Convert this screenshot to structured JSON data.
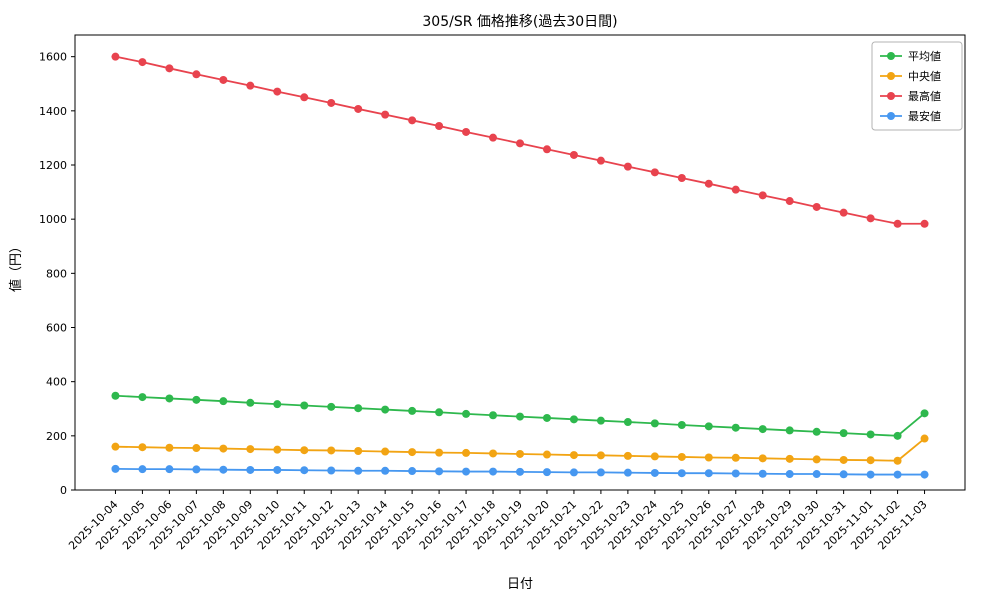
{
  "chart_data": {
    "type": "line",
    "title": "305/SR 価格推移(過去30日間)",
    "xlabel": "日付",
    "ylabel": "値（円）",
    "ylim": [
      0,
      1680
    ],
    "yticks": [
      0,
      200,
      400,
      600,
      800,
      1000,
      1200,
      1400,
      1600
    ],
    "grid": false,
    "legend_position": "upper right",
    "marker": "circle",
    "categories": [
      "2025-10-04",
      "2025-10-05",
      "2025-10-06",
      "2025-10-07",
      "2025-10-08",
      "2025-10-09",
      "2025-10-10",
      "2025-10-11",
      "2025-10-12",
      "2025-10-13",
      "2025-10-14",
      "2025-10-15",
      "2025-10-16",
      "2025-10-17",
      "2025-10-18",
      "2025-10-19",
      "2025-10-20",
      "2025-10-21",
      "2025-10-22",
      "2025-10-23",
      "2025-10-24",
      "2025-10-25",
      "2025-10-26",
      "2025-10-27",
      "2025-10-28",
      "2025-10-29",
      "2025-10-30",
      "2025-10-31",
      "2025-11-01",
      "2025-11-02",
      "2025-11-03"
    ],
    "series": [
      {
        "name": "平均値",
        "color": "#2eb84d",
        "values": [
          348,
          343,
          338,
          333,
          328,
          322,
          317,
          312,
          307,
          302,
          297,
          292,
          287,
          281,
          276,
          271,
          266,
          261,
          256,
          251,
          246,
          240,
          235,
          230,
          225,
          220,
          215,
          210,
          205,
          200,
          283
        ]
      },
      {
        "name": "中央値",
        "color": "#f2a413",
        "values": [
          160,
          158,
          156,
          155,
          153,
          151,
          149,
          147,
          146,
          144,
          142,
          140,
          138,
          137,
          135,
          133,
          131,
          129,
          128,
          126,
          124,
          122,
          120,
          119,
          117,
          115,
          113,
          111,
          110,
          108,
          190
        ]
      },
      {
        "name": "最高値",
        "color": "#e8434e",
        "values": [
          1600,
          1580,
          1557,
          1535,
          1514,
          1493,
          1471,
          1450,
          1429,
          1407,
          1386,
          1365,
          1344,
          1322,
          1301,
          1280,
          1258,
          1237,
          1216,
          1194,
          1173,
          1152,
          1131,
          1109,
          1088,
          1067,
          1045,
          1024,
          1003,
          983,
          983
        ]
      },
      {
        "name": "最安値",
        "color": "#4697f0",
        "values": [
          78,
          77,
          77,
          76,
          75,
          74,
          74,
          73,
          72,
          71,
          71,
          70,
          69,
          68,
          68,
          67,
          66,
          65,
          65,
          64,
          63,
          62,
          62,
          61,
          60,
          59,
          59,
          58,
          57,
          57,
          57
        ]
      }
    ]
  }
}
